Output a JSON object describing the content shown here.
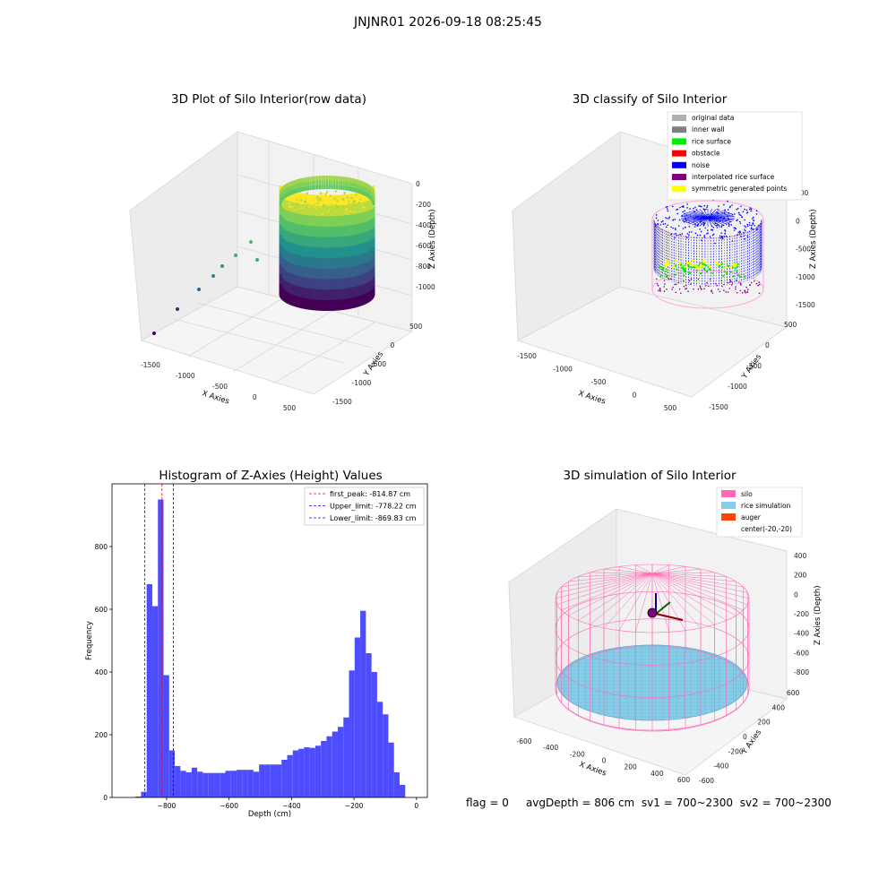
{
  "suptitle": "JNJNR01 2026-09-18 08:25:45",
  "footer": {
    "flag": "flag = 0",
    "avg_depth": "avgDepth = 806 cm",
    "sv1": "sv1 = 700~2300",
    "sv2": "sv2 = 700~2300"
  },
  "colors": {
    "hist_bar": "#4d4dff",
    "original_data": "#b0b0b0",
    "inner_wall": "#808080",
    "rice_surface": "#00ee00",
    "obstacle": "#ff0000",
    "noise": "#0000ff",
    "interpolated_rice_surface": "#800080",
    "symmetric_generated_points": "#ffff00",
    "silo": "#ff69b4",
    "rice_simulation": "#87ceeb",
    "auger": "#ff4500"
  },
  "chart_data": [
    {
      "type": "scatter3d",
      "title": "3D Plot of Silo Interior(row data)",
      "xlabel": "X Axies",
      "ylabel": "Y Axies",
      "zlabel": "Z Axies (Depth)",
      "x_ticks": [
        "-1500",
        "-1000",
        "-500",
        "0",
        "500"
      ],
      "y_ticks": [
        "500",
        "0",
        "-500",
        "-1000",
        "-1500"
      ],
      "z_ticks": [
        "0",
        "-200",
        "-400",
        "-600",
        "-800",
        "-1000"
      ],
      "colormap": "viridis"
    },
    {
      "type": "scatter3d",
      "title": "3D classify of Silo Interior",
      "xlabel": "X Axies",
      "ylabel": "Y Axies",
      "zlabel": "Z Axies (Depth)",
      "x_ticks": [
        "-1500",
        "-1000",
        "-500",
        "0",
        "500"
      ],
      "y_ticks": [
        "500",
        "0",
        "-500",
        "-1000",
        "-1500"
      ],
      "z_ticks": [
        "500",
        "0",
        "-500",
        "-1000",
        "-1500"
      ],
      "legend": [
        "original data",
        "inner wall",
        "rice surface",
        "obstacle",
        "noise",
        "interpolated rice surface",
        "symmetric generated points"
      ],
      "legend_position": "top-right"
    },
    {
      "type": "bar",
      "title": "Histogram of Z-Axies (Height) Values",
      "xlabel": "Depth (cm)",
      "ylabel": "Frequency",
      "xlim": [
        -975,
        35
      ],
      "ylim": [
        0,
        1000
      ],
      "x_ticks": [
        -800,
        -600,
        -400,
        -200,
        0
      ],
      "y_ticks": [
        0,
        200,
        400,
        600,
        800
      ],
      "bin_start": -900,
      "bin_width": 18,
      "values": [
        3,
        18,
        680,
        610,
        950,
        390,
        150,
        100,
        85,
        80,
        95,
        82,
        78,
        78,
        78,
        78,
        85,
        85,
        88,
        88,
        88,
        82,
        105,
        105,
        105,
        105,
        120,
        135,
        150,
        155,
        160,
        158,
        165,
        180,
        195,
        210,
        225,
        255,
        405,
        510,
        595,
        460,
        400,
        305,
        265,
        175,
        80,
        40
      ],
      "lines": [
        {
          "label": "first_peak: -814.87 cm",
          "x": -814.87,
          "color": "#ff0000"
        },
        {
          "label": "Upper_limit: -778.22 cm",
          "x": -778.22,
          "color": "#0000ff"
        },
        {
          "label": "Lower_limit: -869.83 cm",
          "x": -869.83,
          "color": "#0000ff"
        }
      ],
      "legend_position": "top-right"
    },
    {
      "type": "surface3d",
      "title": "3D simulation of Silo Interior",
      "xlabel": "X Axies",
      "ylabel": "Y Axies",
      "zlabel": "Z Axies (Depth)",
      "x_ticks": [
        "-600",
        "-400",
        "-200",
        "0",
        "200",
        "400",
        "600"
      ],
      "y_ticks": [
        "600",
        "400",
        "200",
        "0",
        "-200",
        "-400",
        "-600"
      ],
      "z_ticks": [
        "400",
        "200",
        "0",
        "-200",
        "-400",
        "-600",
        "-800"
      ],
      "legend": [
        "silo",
        "rice simulation",
        "auger",
        "center(-20,-20)"
      ],
      "legend_position": "top-right"
    }
  ]
}
